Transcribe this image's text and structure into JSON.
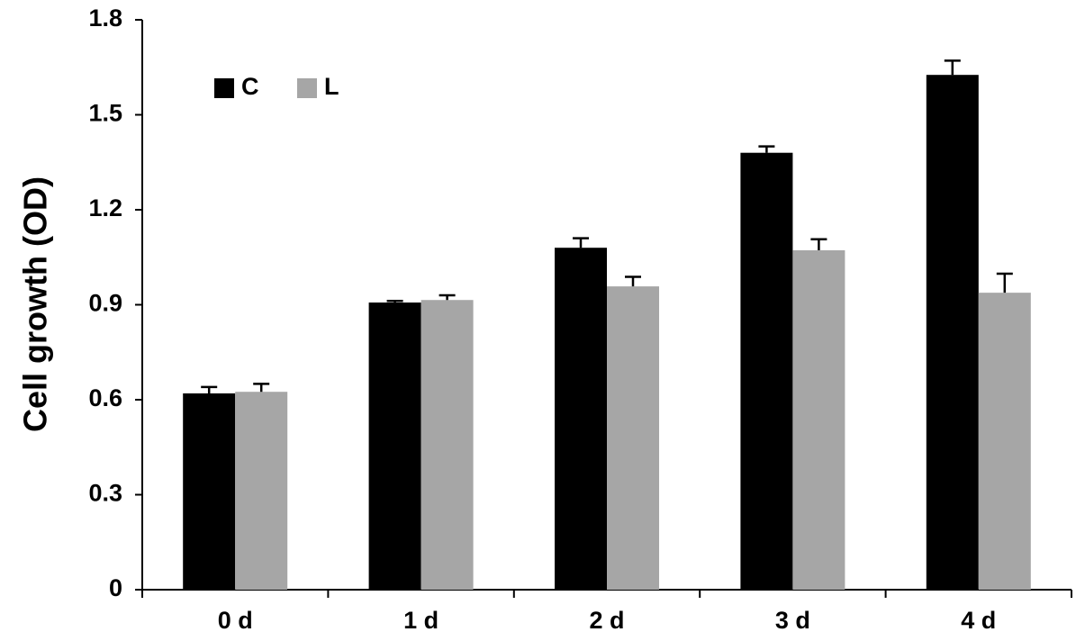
{
  "chart_data": {
    "type": "bar",
    "y_label": "Cell growth (OD)",
    "categories": [
      "0 d",
      "1 d",
      "2 d",
      "3 d",
      "4 d"
    ],
    "series": [
      {
        "name": "C",
        "color": "#000000",
        "values": [
          0.62,
          0.907,
          1.08,
          1.38,
          1.626
        ],
        "errors": [
          0.02,
          0.005,
          0.03,
          0.02,
          0.045
        ]
      },
      {
        "name": "L",
        "color": "#a6a6a6",
        "values": [
          0.625,
          0.915,
          0.958,
          1.072,
          0.938
        ],
        "errors": [
          0.025,
          0.015,
          0.03,
          0.035,
          0.06
        ]
      }
    ],
    "ylim": [
      0,
      1.8
    ],
    "yticks": [
      0,
      0.3,
      0.6,
      0.9,
      1.2,
      1.5,
      1.8
    ],
    "grid": false,
    "legend": "top-left"
  }
}
